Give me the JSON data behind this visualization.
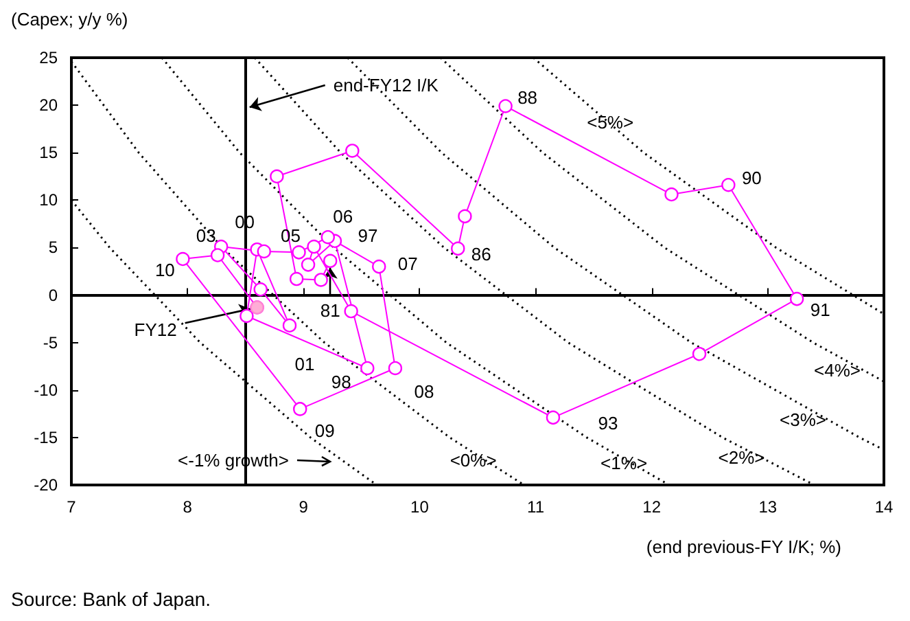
{
  "chart_data": {
    "type": "line",
    "xlabel": "(end previous-FY I/K; %)",
    "ylabel": "(Capex; y/y %)",
    "xlim": [
      7,
      14
    ],
    "ylim": [
      -20,
      25
    ],
    "xticks": [
      7,
      8,
      9,
      10,
      11,
      12,
      13,
      14
    ],
    "yticks": [
      -20,
      -15,
      -10,
      -5,
      0,
      5,
      10,
      15,
      20,
      25
    ],
    "grid": false,
    "legend": false,
    "ref_lines": [
      {
        "axis": "x",
        "value": 8.5,
        "label": "end-FY12 I/K",
        "color": "#000000"
      },
      {
        "axis": "y",
        "value": 0,
        "color": "#000000"
      }
    ],
    "annotations": [
      {
        "text": "81",
        "x": 9.23,
        "y": 3.6
      },
      {
        "text": "86",
        "x": 10.33,
        "y": 4.9
      },
      {
        "text": "88",
        "x": 10.74,
        "y": 19.9
      },
      {
        "text": "90",
        "x": 12.66,
        "y": 11.6
      },
      {
        "text": "91",
        "x": 13.25,
        "y": -0.4
      },
      {
        "text": "93",
        "x": 11.15,
        "y": -12.9
      },
      {
        "text": "97",
        "x": 9.27,
        "y": 5.7
      },
      {
        "text": "98",
        "x": 9.55,
        "y": -7.7
      },
      {
        "text": "00",
        "x": 8.6,
        "y": 4.8
      },
      {
        "text": "01",
        "x": 8.88,
        "y": -3.2
      },
      {
        "text": "03",
        "x": 8.29,
        "y": 5.1
      },
      {
        "text": "05",
        "x": 8.96,
        "y": 4.5
      },
      {
        "text": "06",
        "x": 9.21,
        "y": 6.1
      },
      {
        "text": "07",
        "x": 9.65,
        "y": 3.0
      },
      {
        "text": "08",
        "x": 9.79,
        "y": -7.7
      },
      {
        "text": "09",
        "x": 8.97,
        "y": -12.0
      },
      {
        "text": "10",
        "x": 7.96,
        "y": 3.8
      },
      {
        "text": "FY12",
        "x": 8.6,
        "y": -1.3
      },
      "<-1% growth>",
      "Source: Bank of Japan."
    ],
    "series": [
      {
        "color": "#ff00ff",
        "marker": "circle",
        "x": [
          9.23,
          9.15,
          8.94,
          8.77,
          9.42,
          10.33,
          10.39,
          10.74,
          12.17,
          12.66,
          13.25,
          12.41,
          11.15,
          9.41,
          9.09,
          9.04,
          9.27,
          9.55,
          8.51,
          8.6,
          8.88,
          8.63,
          8.29,
          8.66,
          8.96,
          9.21,
          9.65,
          9.79,
          8.97,
          7.96,
          8.26,
          8.6
        ],
        "values": [
          3.6,
          1.6,
          1.7,
          12.5,
          15.2,
          4.9,
          8.3,
          19.9,
          10.6,
          11.6,
          -0.4,
          -6.2,
          -12.9,
          -1.7,
          5.1,
          3.2,
          5.7,
          -7.7,
          -2.2,
          4.8,
          -3.2,
          0.6,
          5.1,
          4.6,
          4.5,
          6.1,
          3.0,
          -7.7,
          -12.0,
          3.8,
          4.2,
          -1.3
        ]
      },
      {
        "type": "scatter",
        "color": "#ff99cc",
        "marker": "circle",
        "x": [
          8.6
        ],
        "values": [
          -1.3
        ]
      },
      {
        "color": "#000000",
        "marker": "none",
        "line_style": "dotted",
        "x": [
          7,
          7.33,
          8.11,
          9.06,
          9.63
        ],
        "values": [
          10,
          5,
          -5,
          -15,
          -20
        ]
      },
      {
        "name": "<0%>",
        "color": "#000000",
        "marker": "none",
        "line_style": "dotted",
        "x": [
          7,
          7.58,
          8.3,
          9.18,
          10.26,
          10.9
        ],
        "values": [
          24.6,
          15,
          5,
          -5,
          -15,
          -20
        ]
      },
      {
        "name": "<1%>",
        "color": "#000000",
        "marker": "none",
        "line_style": "dotted",
        "x": [
          7.78,
          8.45,
          9.26,
          10.23,
          11.44,
          12.15
        ],
        "values": [
          25,
          15,
          5,
          -5,
          -15,
          -20
        ]
      },
      {
        "name": "<2%>",
        "color": "#000000",
        "marker": "none",
        "line_style": "dotted",
        "x": [
          8.58,
          9.32,
          10.21,
          11.28,
          12.61,
          13.4
        ],
        "values": [
          25,
          15,
          5,
          -5,
          -15,
          -20
        ]
      },
      {
        "name": "<3%>",
        "color": "#000000",
        "marker": "none",
        "line_style": "dotted",
        "x": [
          9.38,
          10.19,
          11.16,
          12.34,
          13.79,
          14
        ],
        "values": [
          25,
          15,
          5,
          -5,
          -15,
          -16.3
        ]
      },
      {
        "name": "<4%>",
        "color": "#000000",
        "marker": "none",
        "line_style": "dotted",
        "x": [
          10.18,
          11.06,
          12.11,
          13.39,
          14
        ],
        "values": [
          25,
          15,
          5,
          -5,
          -9.1
        ]
      },
      {
        "name": "<5%>",
        "color": "#000000",
        "marker": "none",
        "line_style": "dotted",
        "x": [
          10.98,
          11.93,
          13.07,
          14
        ],
        "values": [
          25,
          15,
          5,
          -2
        ]
      }
    ]
  }
}
